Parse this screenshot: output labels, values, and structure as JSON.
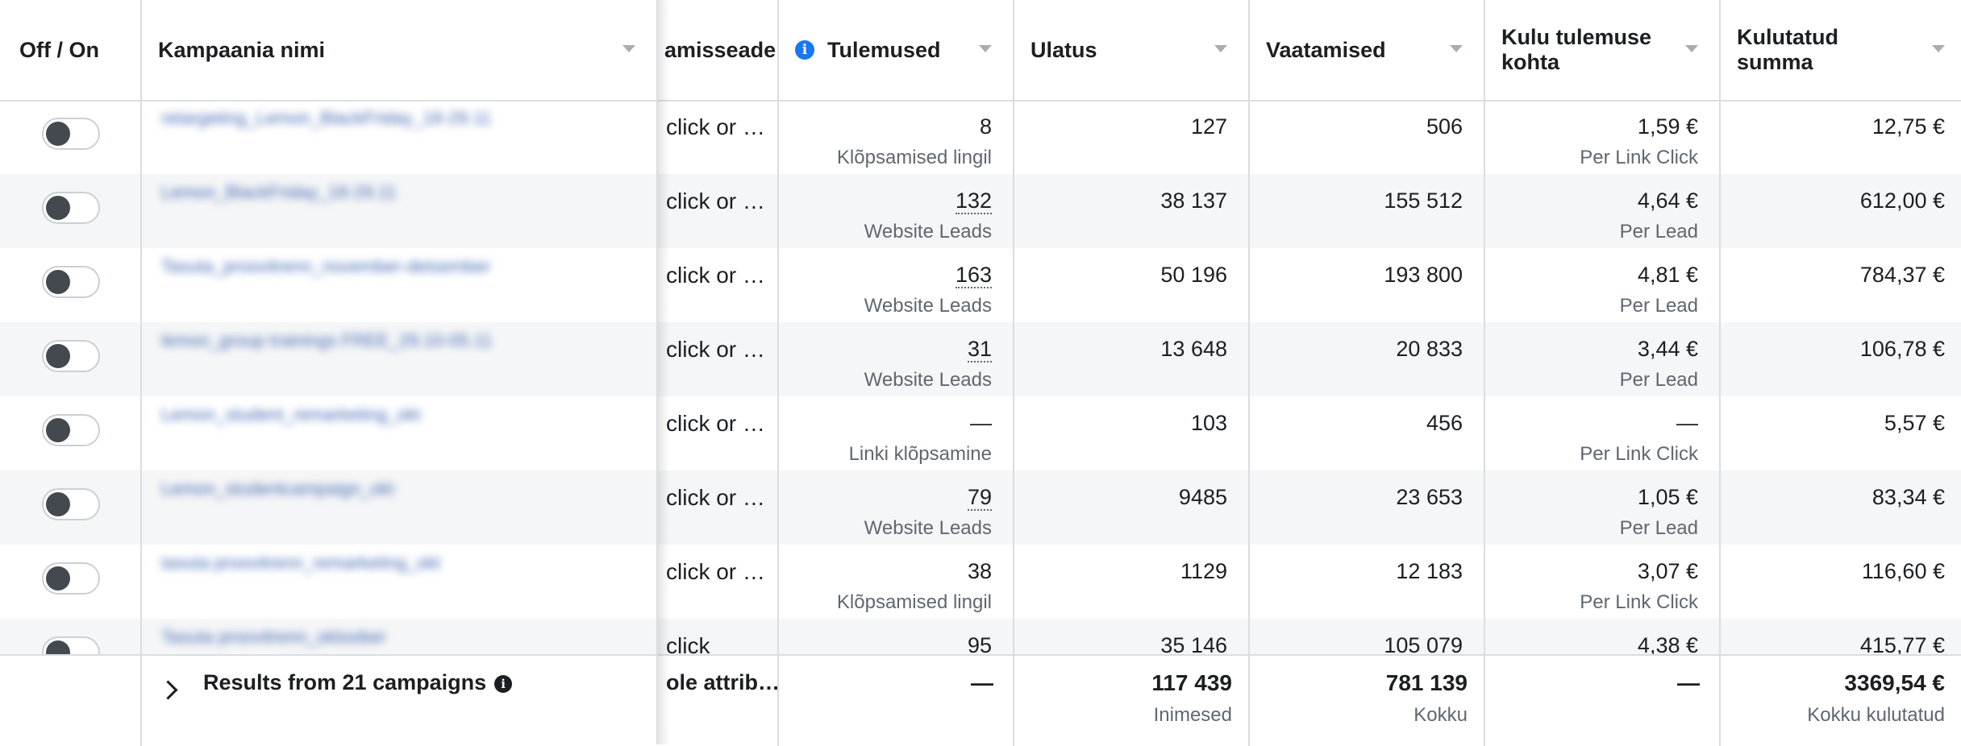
{
  "header": {
    "off_on": "Off / On",
    "campaign_name": "Kampaania nimi",
    "attribution": "amisseade",
    "results": "Tulemused",
    "reach": "Ulatus",
    "impressions": "Vaatamised",
    "cost_per_result": "Kulu tulemuse kohta",
    "amount_spent": "Kulutatud summa"
  },
  "rows": [
    {
      "name": "retargeting_Lemon_BlackFriday_18-29.11",
      "attribution": "click or …",
      "results": "8",
      "results_sub": "Klõpsamised lingil",
      "reach": "127",
      "impressions": "506",
      "cpr": "1,59 €",
      "cpr_sub": "Per Link Click",
      "spent": "12,75 €"
    },
    {
      "name": "Lemon_BlackFriday_18-29.11",
      "attribution": "click or …",
      "results": "132",
      "results_sub": "Website Leads",
      "reach": "38 137",
      "impressions": "155 512",
      "cpr": "4,64 €",
      "cpr_sub": "Per Lead",
      "spent": "612,00 €"
    },
    {
      "name": "Tasuta_proovitrenn_november-detsember",
      "attribution": "click or …",
      "results": "163",
      "results_sub": "Website Leads",
      "reach": "50 196",
      "impressions": "193 800",
      "cpr": "4,81 €",
      "cpr_sub": "Per Lead",
      "spent": "784,37 €"
    },
    {
      "name": "lemon_group trainings FREE_29.10-05.11",
      "attribution": "click or …",
      "results": "31",
      "results_sub": "Website Leads",
      "reach": "13 648",
      "impressions": "20 833",
      "cpr": "3,44 €",
      "cpr_sub": "Per Lead",
      "spent": "106,78 €"
    },
    {
      "name": "Lemon_student_remarketing_okt",
      "attribution": "click or …",
      "results": "—",
      "results_sub": "Linki klõpsamine",
      "reach": "103",
      "impressions": "456",
      "cpr": "—",
      "cpr_sub": "Per Link Click",
      "spent": "5,57 €"
    },
    {
      "name": "Lemon_studentcampaign_okt",
      "attribution": "click or …",
      "results": "79",
      "results_sub": "Website Leads",
      "reach": "9485",
      "impressions": "23 653",
      "cpr": "1,05 €",
      "cpr_sub": "Per Lead",
      "spent": "83,34 €"
    },
    {
      "name": "tasuta proovitrenn_remarketing_okt",
      "attribution": "click or …",
      "results": "38",
      "results_sub": "Klõpsamised lingil",
      "reach": "1129",
      "impressions": "12 183",
      "cpr": "3,07 €",
      "cpr_sub": "Per Link Click",
      "spent": "116,60 €"
    },
    {
      "name": "Tasuta proovitrenn_oktoober",
      "attribution": "click",
      "results": "95",
      "results_sub": "",
      "reach": "35 146",
      "impressions": "105 079",
      "cpr": "4,38 €",
      "cpr_sub": "",
      "spent": "415,77 €"
    }
  ],
  "footer": {
    "title": "Results from 21 campaigns",
    "attribution": "ole attrib…",
    "results": "—",
    "reach": "117 439",
    "reach_sub": "Inimesed",
    "impressions": "781 139",
    "impressions_sub": "Kokku",
    "cpr": "—",
    "spent": "3369,54 €",
    "spent_sub": "Kokku kulutatud"
  },
  "colors": {
    "accent": "#1877f2",
    "link": "#4267b2",
    "alt_row": "#f5f6f7",
    "border": "#dadde1"
  }
}
